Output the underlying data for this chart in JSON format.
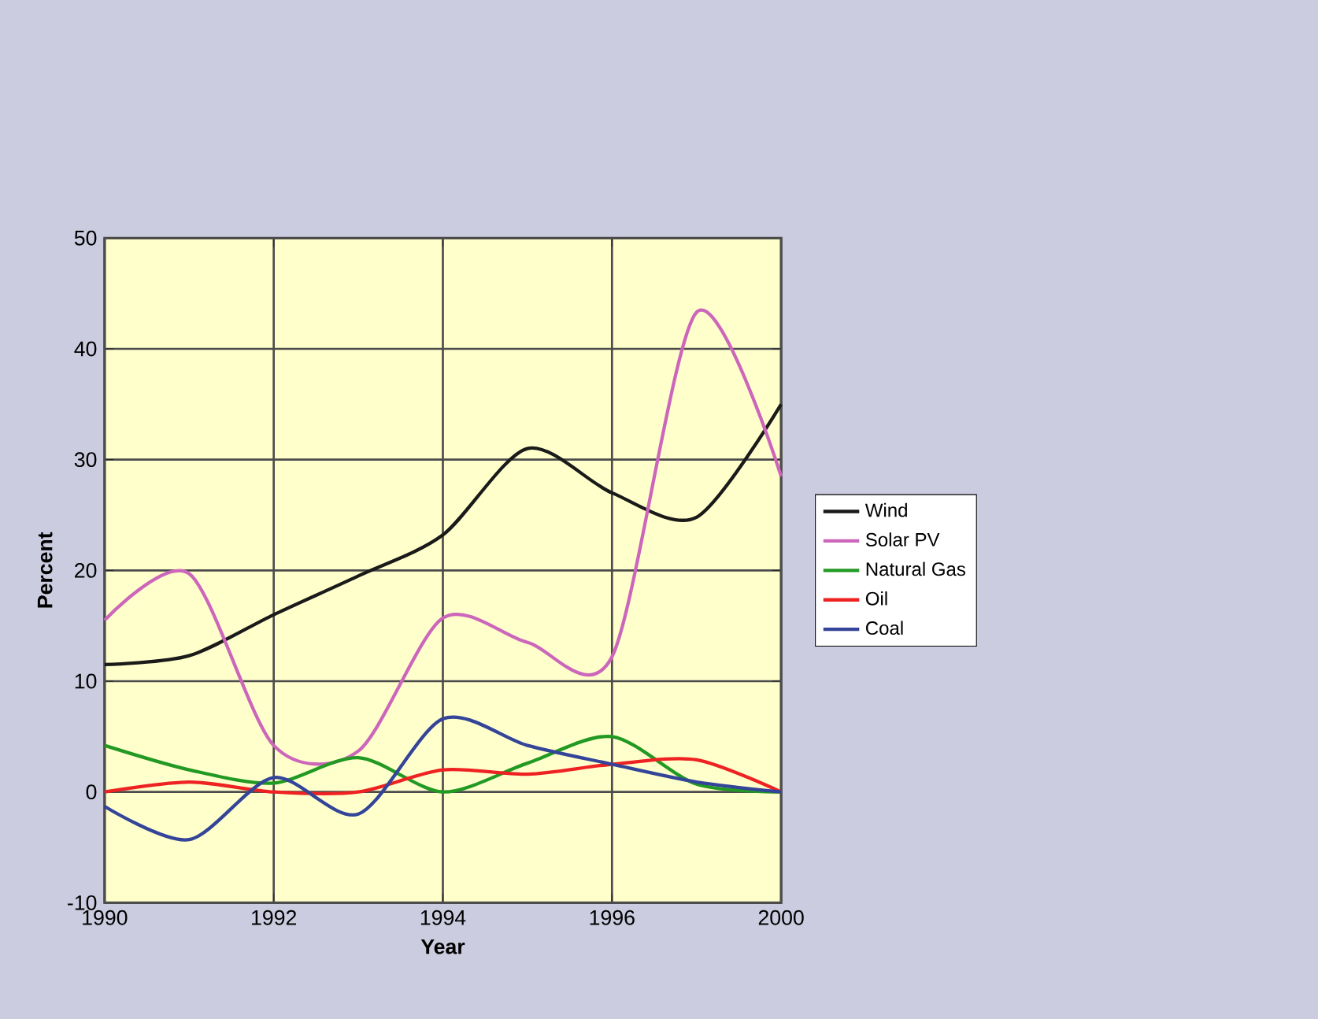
{
  "chart_data": {
    "type": "line",
    "xlabel": "Year",
    "ylabel": "Percent",
    "categories": [
      "1990",
      null,
      "1992",
      null,
      "1994",
      null,
      "1996",
      null,
      "2000"
    ],
    "ylim": [
      -10,
      50
    ],
    "yticks": [
      -10,
      0,
      10,
      20,
      30,
      40,
      50
    ],
    "grid": true,
    "legend": "right",
    "line_style": "solid",
    "series": [
      {
        "name": "Wind",
        "color": "#1a1a1a",
        "values": [
          11.5,
          12.3,
          16,
          19.5,
          23.2,
          31,
          27,
          24.8,
          35
        ]
      },
      {
        "name": "Solar PV",
        "color": "#cc66bb",
        "values": [
          15.5,
          19.7,
          4.2,
          3.7,
          15.7,
          13.5,
          12.2,
          43.3,
          28.5
        ]
      },
      {
        "name": "Natural Gas",
        "color": "#229922",
        "values": [
          4.2,
          2,
          0.8,
          3.1,
          0,
          2.6,
          5,
          0.7,
          0
        ]
      },
      {
        "name": "Oil",
        "color": "#ee2222",
        "values": [
          0,
          0.9,
          0,
          0,
          2,
          1.6,
          2.5,
          2.9,
          0
        ]
      },
      {
        "name": "Coal",
        "color": "#334499",
        "values": [
          -1.3,
          -4.3,
          1.3,
          -2,
          6.6,
          4.2,
          2.5,
          0.9,
          0
        ]
      }
    ]
  }
}
